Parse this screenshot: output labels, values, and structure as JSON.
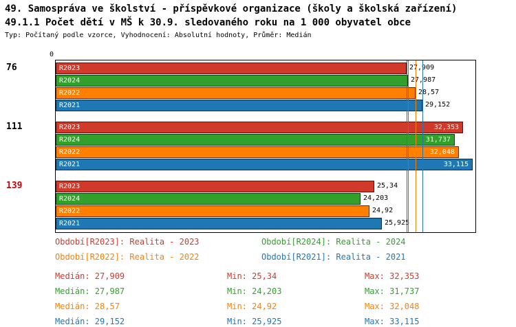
{
  "header": {
    "title": "49. Samospráva ve školství - příspěvkové organizace (školy a školská zařízení)",
    "subtitle": "49.1.1 Počet dětí v MŠ k 30.9. sledovaného roku na 1 000 obyvatel obce",
    "meta": "Typ: Počítaný podle vzorce, Vyhodnocení: Absolutní hodnoty, Průměr: Medián"
  },
  "chart_data": {
    "type": "bar",
    "orientation": "horizontal",
    "title": "49.1.1 Počet dětí v MŠ k 30.9. sledovaného roku na 1 000 obyvatel obce",
    "axis_origin_label": "0",
    "xlim": [
      0,
      33.35
    ],
    "grid": false,
    "legend_position": "bottom",
    "series_colors": {
      "R2023": "#d03a2b",
      "R2024": "#33a02c",
      "R2022": "#ff7f00",
      "R2021": "#1f78b4"
    },
    "groups": [
      {
        "label": "76",
        "label_color": "#000000",
        "bars": [
          {
            "series": "R2023",
            "value": 27.909,
            "label": "27,909"
          },
          {
            "series": "R2024",
            "value": 27.987,
            "label": "27,987"
          },
          {
            "series": "R2022",
            "value": 28.57,
            "label": "28,57"
          },
          {
            "series": "R2021",
            "value": 29.152,
            "label": "29,152"
          }
        ]
      },
      {
        "label": "111",
        "label_color": "#000000",
        "bars": [
          {
            "series": "R2023",
            "value": 32.353,
            "label": "32,353"
          },
          {
            "series": "R2024",
            "value": 31.737,
            "label": "31,737"
          },
          {
            "series": "R2022",
            "value": 32.048,
            "label": "32,048"
          },
          {
            "series": "R2021",
            "value": 33.115,
            "label": "33,115"
          }
        ]
      },
      {
        "label": "139",
        "label_color": "#cc0000",
        "bars": [
          {
            "series": "R2023",
            "value": 25.34,
            "label": "25,34"
          },
          {
            "series": "R2024",
            "value": 24.203,
            "label": "24,203"
          },
          {
            "series": "R2022",
            "value": 24.92,
            "label": "24,92"
          },
          {
            "series": "R2021",
            "value": 25.925,
            "label": "25,925"
          }
        ]
      }
    ],
    "median_lines": [
      {
        "series": "R2023",
        "value": 27.909
      },
      {
        "series": "R2024",
        "value": 27.987
      },
      {
        "series": "R2022",
        "value": 28.57
      },
      {
        "series": "R2021",
        "value": 29.152
      }
    ]
  },
  "legend": [
    {
      "label": "Období[R2023]: Realita - 2023",
      "color": "#d03a2b"
    },
    {
      "label": "Období[R2024]: Realita - 2024",
      "color": "#33a02c"
    },
    {
      "label": "Období[R2022]: Realita - 2022",
      "color": "#ff7f00"
    },
    {
      "label": "Období[R2021]: Realita - 2021",
      "color": "#1f78b4"
    }
  ],
  "stats": [
    {
      "series": "R2023",
      "color": "#d03a2b",
      "median": "Medián: 27,909",
      "min": "Min: 25,34",
      "max": "Max: 32,353"
    },
    {
      "series": "R2024",
      "color": "#33a02c",
      "median": "Medián: 27,987",
      "min": "Min: 24,203",
      "max": "Max: 31,737"
    },
    {
      "series": "R2022",
      "color": "#ff7f00",
      "median": "Medián: 28,57",
      "min": "Min: 24,92",
      "max": "Max: 32,048"
    },
    {
      "series": "R2021",
      "color": "#1f78b4",
      "median": "Medián: 29,152",
      "min": "Min: 25,925",
      "max": "Max: 33,115"
    }
  ]
}
